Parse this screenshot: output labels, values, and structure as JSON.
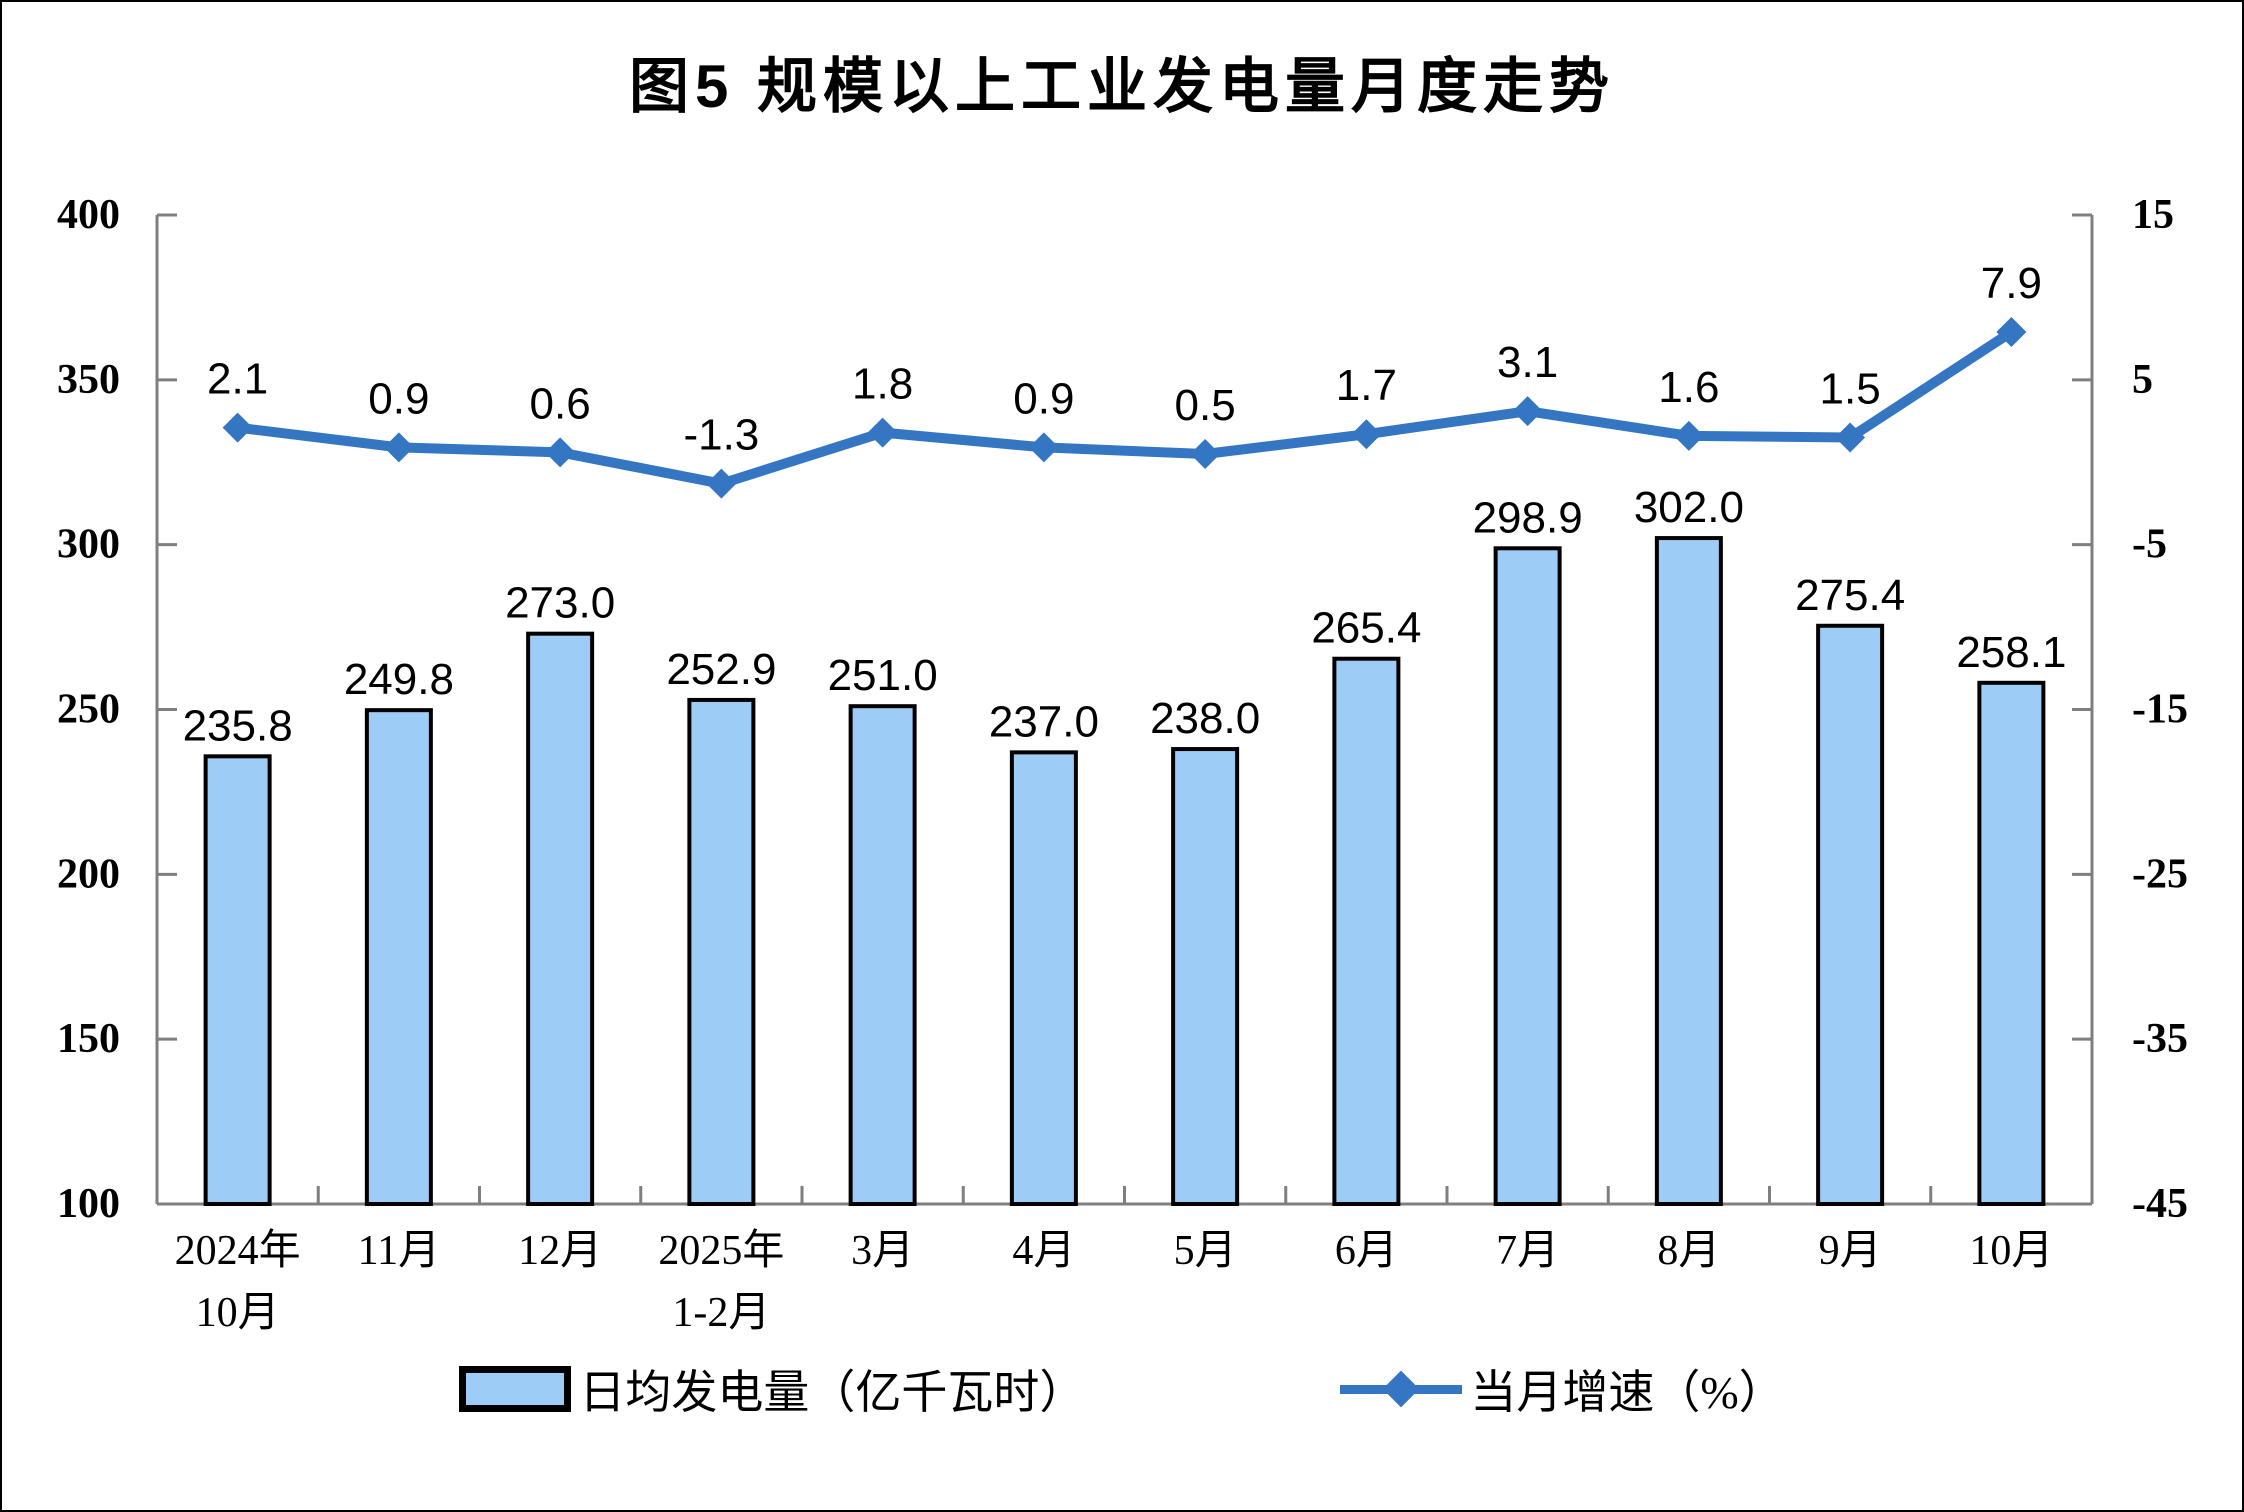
{
  "title": "图5 规模以上工业发电量月度走势",
  "legend": {
    "bar_label": "日均发电量（亿千瓦时）",
    "line_label": "当月增速（%）"
  },
  "chart_data": {
    "type": "combo bar+line (dual axis)",
    "title": "图5 规模以上工业发电量月度走势",
    "categories": [
      [
        "2024年",
        "10月"
      ],
      [
        "11月"
      ],
      [
        "12月"
      ],
      [
        "2025年",
        "1-2月"
      ],
      [
        "3月"
      ],
      [
        "4月"
      ],
      [
        "5月"
      ],
      [
        "6月"
      ],
      [
        "7月"
      ],
      [
        "8月"
      ],
      [
        "9月"
      ],
      [
        "10月"
      ]
    ],
    "series": [
      {
        "name": "日均发电量（亿千瓦时）",
        "type": "bar",
        "axis": "left",
        "values": [
          235.8,
          249.8,
          273.0,
          252.9,
          251.0,
          237.0,
          238.0,
          265.4,
          298.9,
          302.0,
          275.4,
          258.1
        ]
      },
      {
        "name": "当月增速（%）",
        "type": "line",
        "axis": "right",
        "values": [
          2.1,
          0.9,
          0.6,
          -1.3,
          1.8,
          0.9,
          0.5,
          1.7,
          3.1,
          1.6,
          1.5,
          7.9
        ]
      }
    ],
    "left_axis": {
      "min": 100,
      "max": 400,
      "ticks": [
        400,
        350,
        300,
        250,
        200,
        150,
        100
      ]
    },
    "right_axis": {
      "min": -45,
      "max": 15,
      "ticks": [
        15,
        5,
        -5,
        -15,
        -25,
        -35,
        -45
      ]
    },
    "grid": false,
    "legend_position": "bottom",
    "colors": {
      "bar_fill": "#9DCDF6",
      "bar_border": "#000000",
      "line": "#3576C3",
      "label": "#000000",
      "axis": "#7F7F7F"
    }
  }
}
